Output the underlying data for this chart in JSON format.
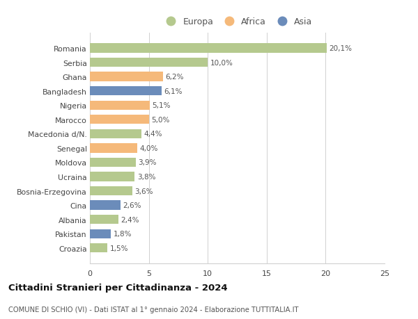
{
  "countries": [
    "Croazia",
    "Pakistan",
    "Albania",
    "Cina",
    "Bosnia-Erzegovina",
    "Ucraina",
    "Moldova",
    "Senegal",
    "Macedonia d/N.",
    "Marocco",
    "Nigeria",
    "Bangladesh",
    "Ghana",
    "Serbia",
    "Romania"
  ],
  "values": [
    1.5,
    1.8,
    2.4,
    2.6,
    3.6,
    3.8,
    3.9,
    4.0,
    4.4,
    5.0,
    5.1,
    6.1,
    6.2,
    10.0,
    20.1
  ],
  "labels": [
    "1,5%",
    "1,8%",
    "2,4%",
    "2,6%",
    "3,6%",
    "3,8%",
    "3,9%",
    "4,0%",
    "4,4%",
    "5,0%",
    "5,1%",
    "6,1%",
    "6,2%",
    "10,0%",
    "20,1%"
  ],
  "colors": [
    "#b5c98e",
    "#6b8cba",
    "#b5c98e",
    "#6b8cba",
    "#b5c98e",
    "#b5c98e",
    "#b5c98e",
    "#f5b97a",
    "#b5c98e",
    "#f5b97a",
    "#f5b97a",
    "#6b8cba",
    "#f5b97a",
    "#b5c98e",
    "#b5c98e"
  ],
  "legend_labels": [
    "Europa",
    "Africa",
    "Asia"
  ],
  "legend_colors": [
    "#b5c98e",
    "#f5b97a",
    "#6b8cba"
  ],
  "title": "Cittadini Stranieri per Cittadinanza - 2024",
  "subtitle": "COMUNE DI SCHIO (VI) - Dati ISTAT al 1° gennaio 2024 - Elaborazione TUTTITALIA.IT",
  "xlim": [
    0,
    25
  ],
  "xticks": [
    0,
    5,
    10,
    15,
    20,
    25
  ],
  "background_color": "#ffffff",
  "grid_color": "#d0d0d0",
  "bar_height": 0.65
}
